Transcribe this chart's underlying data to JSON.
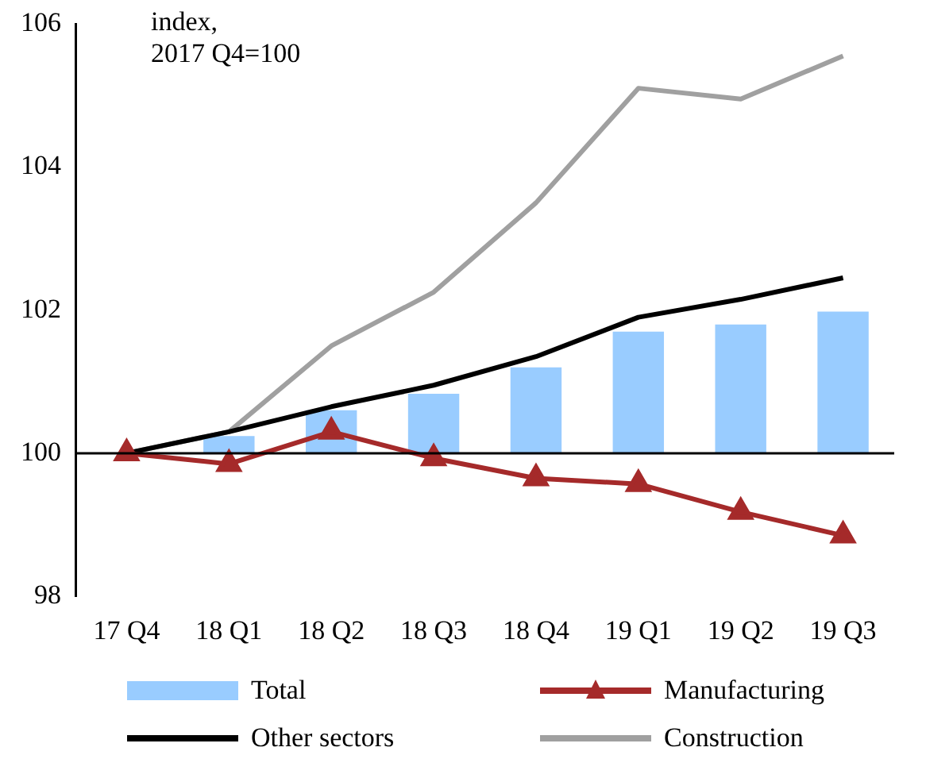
{
  "chart_data": {
    "type": "bar",
    "ylabel": "index,\n2017 Q4=100",
    "categories": [
      "17 Q4",
      "18 Q1",
      "18 Q2",
      "18 Q3",
      "18 Q4",
      "19 Q1",
      "19 Q2",
      "19 Q3"
    ],
    "ylim": [
      98,
      106
    ],
    "yticks": [
      98,
      100,
      102,
      104,
      106
    ],
    "grid": false,
    "legend": "bottom",
    "ref_lines": [
      {
        "axis": "y",
        "value": 100,
        "color": "#000000"
      }
    ],
    "series": [
      {
        "name": "Total",
        "color": "#99ccff",
        "base": [
          null,
          100,
          100,
          100,
          100,
          100,
          100,
          100
        ],
        "values": [
          null,
          0.24,
          0.6,
          0.83,
          1.2,
          1.7,
          1.8,
          1.98
        ]
      },
      {
        "name": "Manufacturing",
        "type": "line",
        "color": "#a52a2a",
        "marker": "triangle",
        "values": [
          100,
          99.85,
          100.3,
          99.93,
          99.65,
          99.57,
          99.18,
          98.85
        ]
      },
      {
        "name": "Other sectors",
        "type": "line",
        "color": "#000000",
        "marker": "none",
        "values": [
          100,
          100.3,
          100.65,
          100.95,
          101.35,
          101.9,
          102.15,
          102.45
        ]
      },
      {
        "name": "Construction",
        "type": "line",
        "color": "#a0a0a0",
        "marker": "none",
        "values": [
          100,
          100.3,
          101.5,
          102.25,
          103.5,
          105.1,
          104.95,
          105.55
        ]
      }
    ]
  }
}
